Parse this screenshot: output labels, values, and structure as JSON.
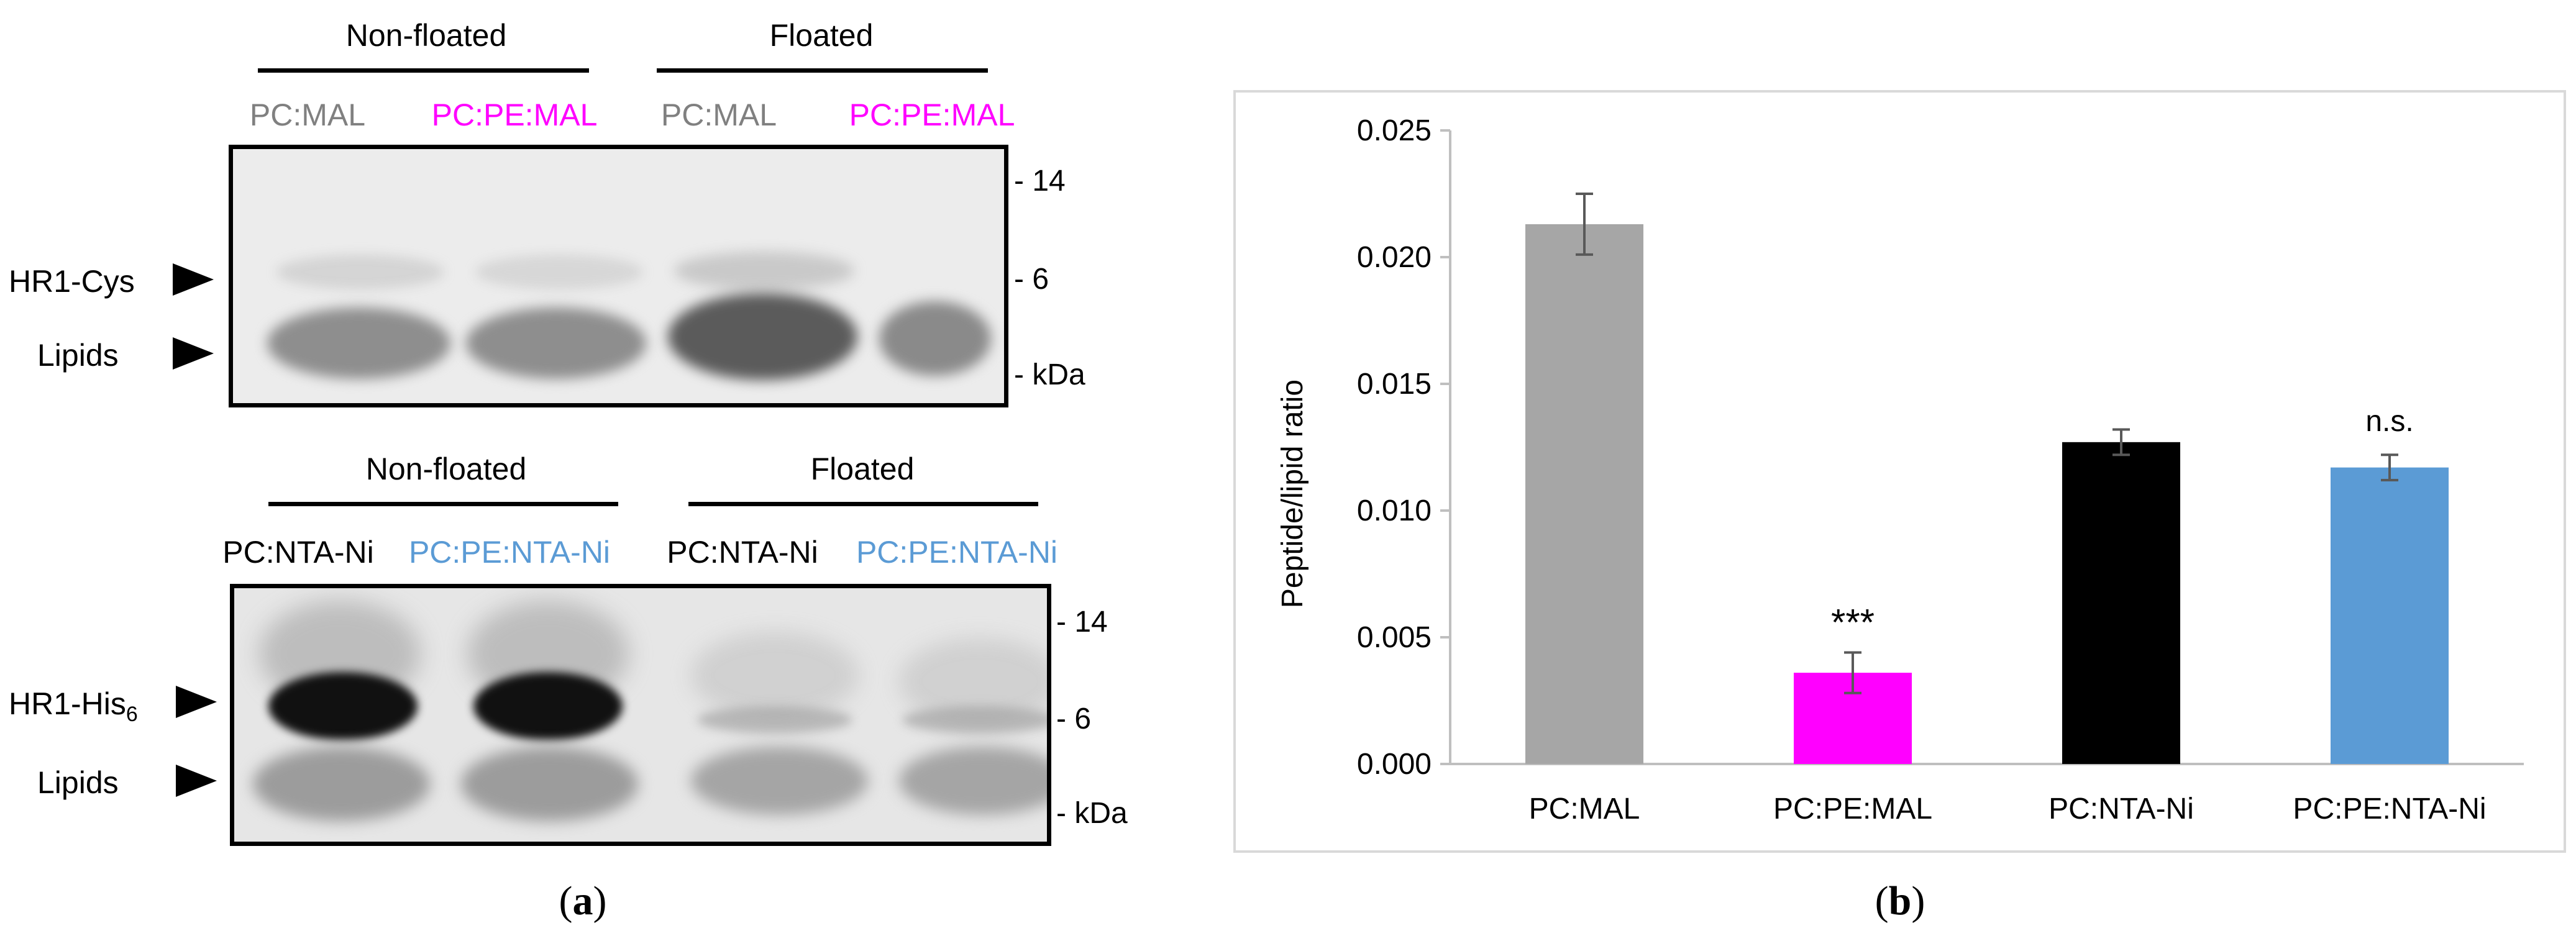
{
  "panel_a": {
    "top_gel": {
      "group_left": "Non-floated",
      "group_right": "Floated",
      "lanes": [
        {
          "label": "PC:MAL",
          "color": "#808080"
        },
        {
          "label": "PC:PE:MAL",
          "color": "#ff00ff"
        },
        {
          "label": "PC:MAL",
          "color": "#808080"
        },
        {
          "label": "PC:PE:MAL",
          "color": "#ff00ff"
        }
      ],
      "markers": [
        "- 14",
        "- 6",
        "- kDa"
      ],
      "band_labels": [
        "HR1-Cys",
        "Lipids"
      ]
    },
    "bottom_gel": {
      "group_left": "Non-floated",
      "group_right": "Floated",
      "lanes": [
        {
          "label": "PC:NTA-Ni",
          "color": "#000000"
        },
        {
          "label": "PC:PE:NTA-Ni",
          "color": "#5b9bd5"
        },
        {
          "label": "PC:NTA-Ni",
          "color": "#000000"
        },
        {
          "label": "PC:PE:NTA-Ni",
          "color": "#5b9bd5"
        }
      ],
      "markers": [
        "- 14",
        "- 6",
        "- kDa"
      ],
      "band_label_base": "HR1-His",
      "band_label_sub": "6",
      "band_label_lipids": "Lipids"
    },
    "caption": {
      "open": "(",
      "letter": "a",
      "close": ")"
    }
  },
  "chart_data": {
    "type": "bar",
    "title": "",
    "xlabel": "",
    "ylabel": "Peptide/lipid ratio",
    "ylim": [
      0,
      0.025
    ],
    "yticks": [
      0.0,
      0.005,
      0.01,
      0.015,
      0.02,
      0.025
    ],
    "ytick_labels": [
      "0.000",
      "0.005",
      "0.010",
      "0.015",
      "0.020",
      "0.025"
    ],
    "categories": [
      "PC:MAL",
      "PC:PE:MAL",
      "PC:NTA-Ni",
      "PC:PE:NTA-Ni"
    ],
    "values": [
      0.0213,
      0.0036,
      0.0127,
      0.0117
    ],
    "errors": [
      0.0012,
      0.0008,
      0.0005,
      0.0005
    ],
    "colors": [
      "#a6a6a6",
      "#ff00ff",
      "#000000",
      "#5b9bd5"
    ],
    "annotations": [
      "",
      "***",
      "",
      "n.s."
    ]
  },
  "panel_b": {
    "caption": {
      "open": "(",
      "letter": "b",
      "close": ")"
    }
  }
}
